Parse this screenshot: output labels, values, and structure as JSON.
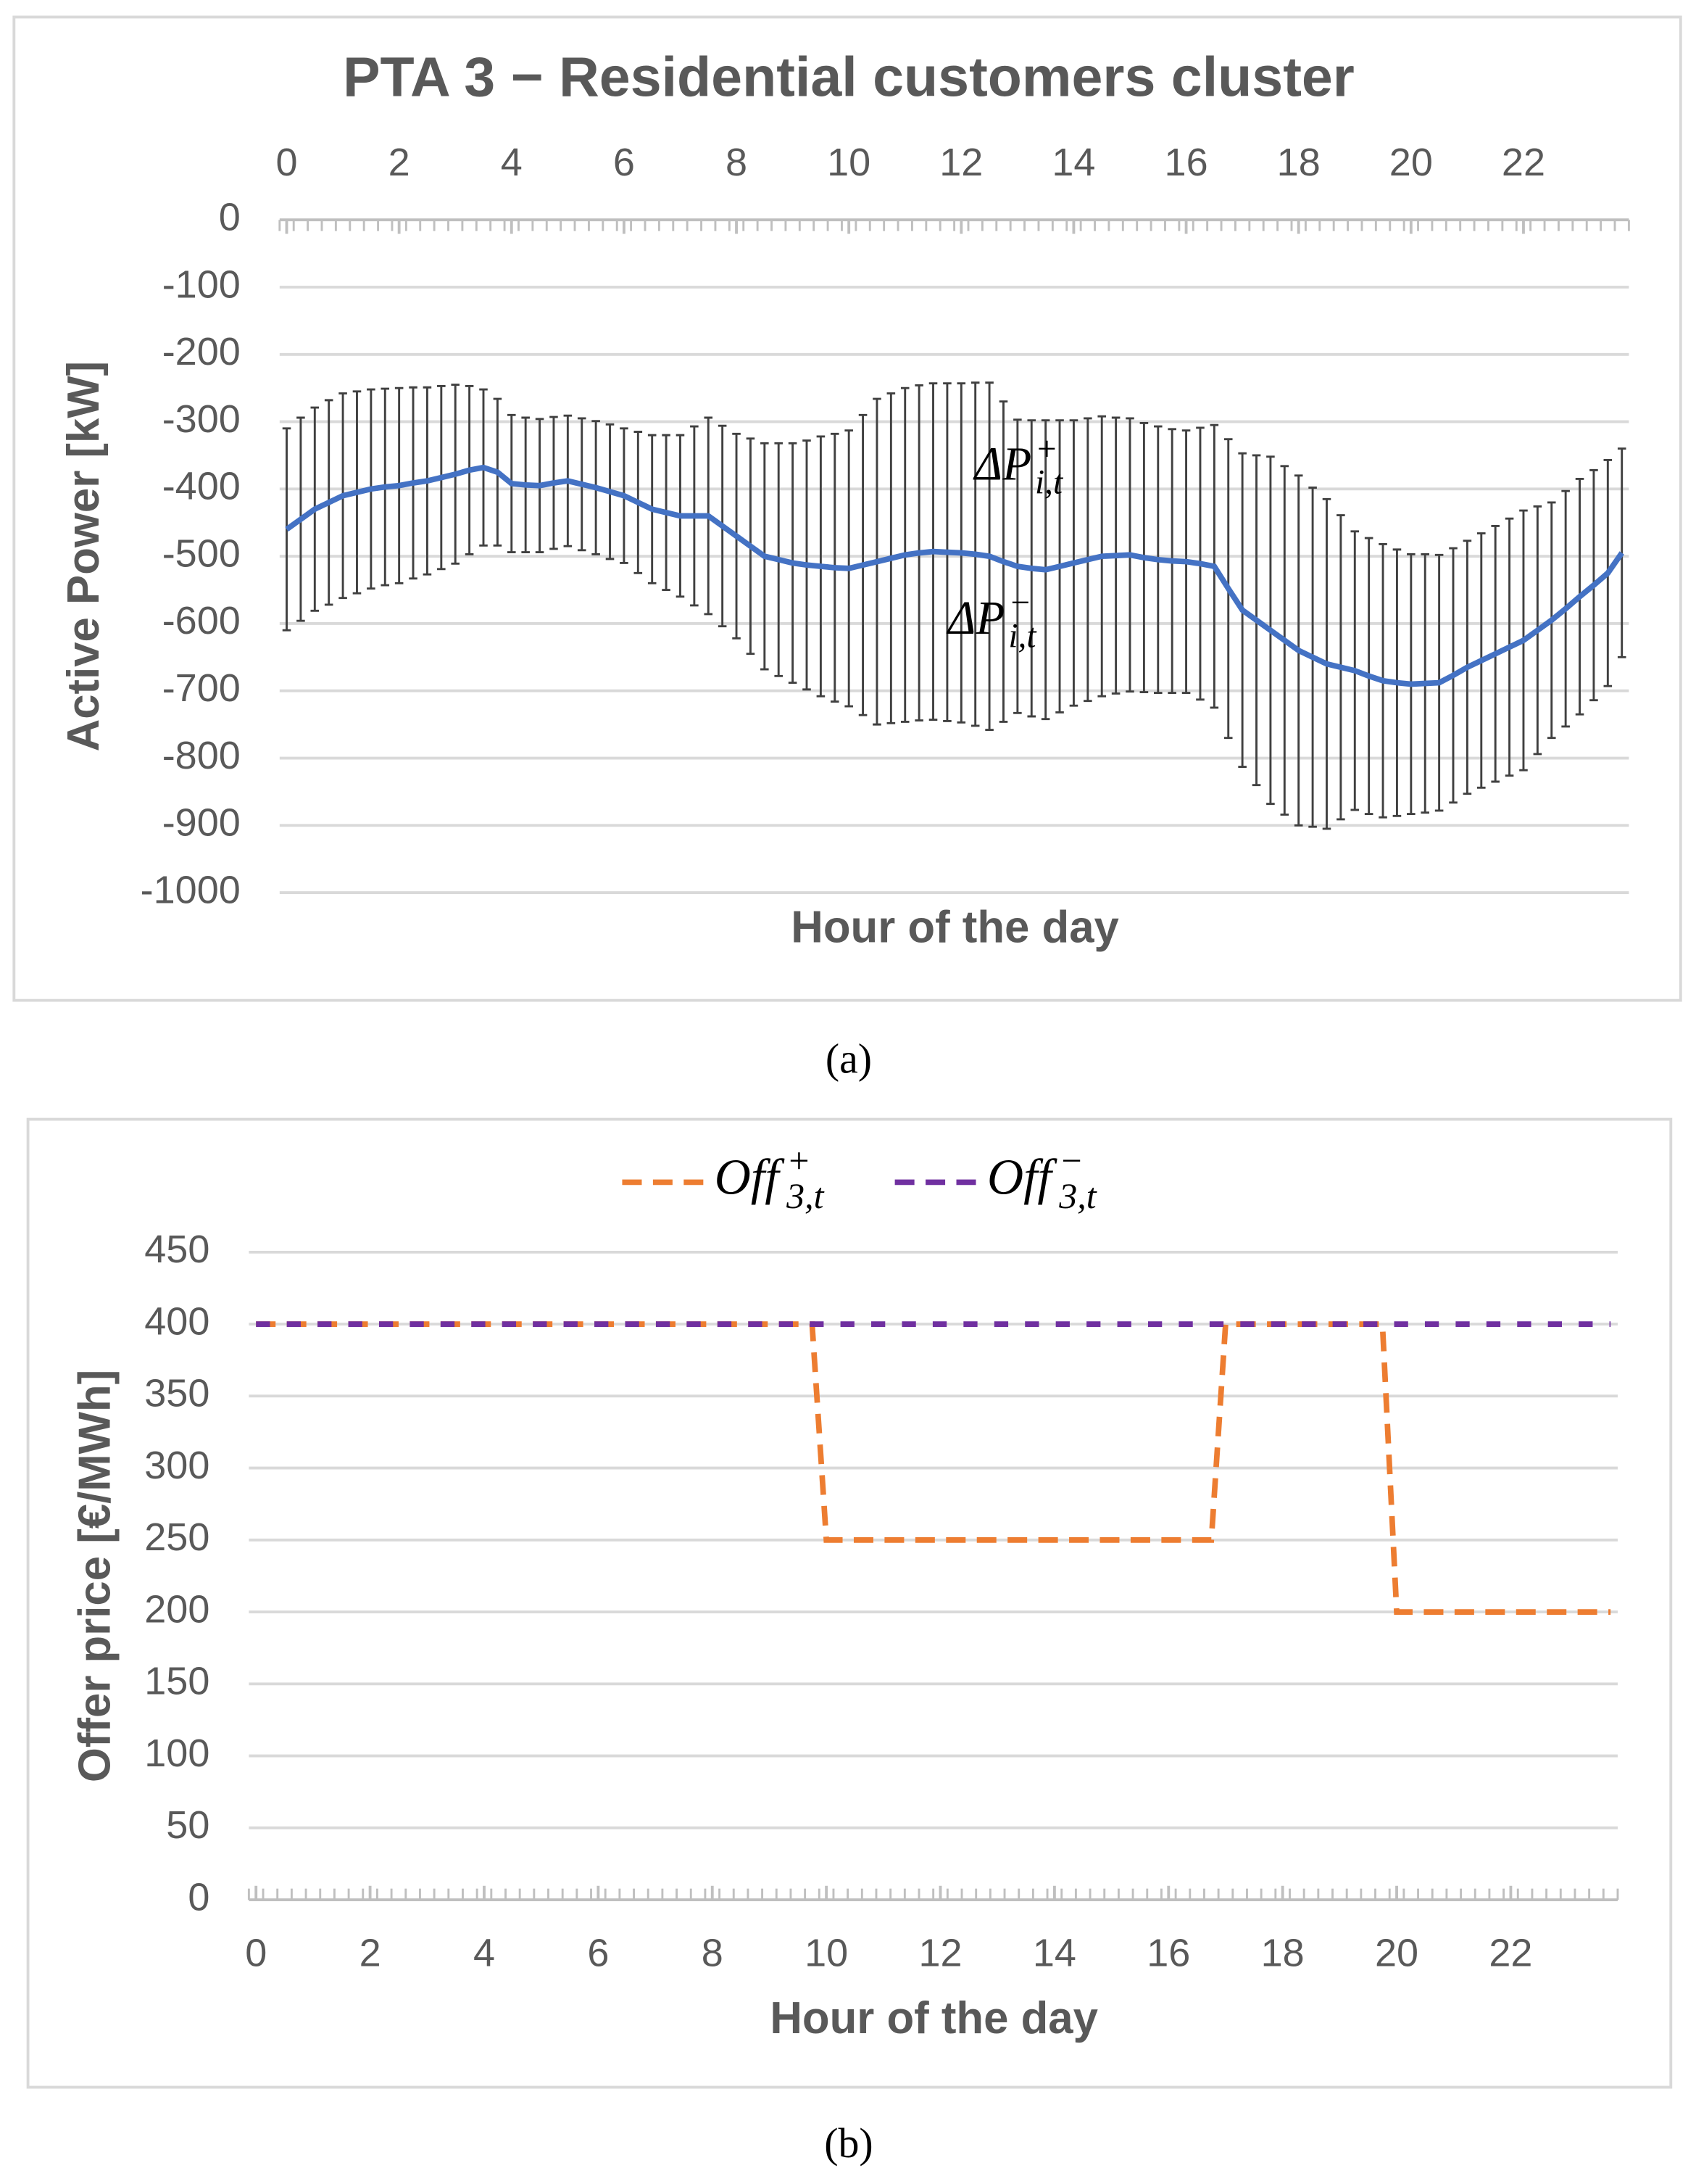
{
  "captions": [
    "(a)",
    "(b)"
  ],
  "chart_data": [
    {
      "type": "line",
      "title": "PTA 3 − Residential customers cluster",
      "xlabel": "Hour of the day",
      "ylabel": "Active Power [kW]",
      "x_axis_position": "top",
      "xlim": [
        -0.125,
        23.875
      ],
      "ylim": [
        -1000,
        0
      ],
      "xticks": [
        0,
        2,
        4,
        6,
        8,
        10,
        12,
        14,
        16,
        18,
        20,
        22
      ],
      "yticks": [
        0,
        -100,
        -200,
        -300,
        -400,
        -500,
        -600,
        -700,
        -800,
        -900,
        -1000
      ],
      "grid": true,
      "annotations": [
        {
          "text": "ΔP",
          "sub": "i,t",
          "sup": "+"
        },
        {
          "text": "ΔP",
          "sub": "i,t",
          "sup": "−"
        }
      ],
      "x": [
        0,
        0.25,
        0.5,
        0.75,
        1,
        1.25,
        1.5,
        1.75,
        2,
        2.25,
        2.5,
        2.75,
        3,
        3.25,
        3.5,
        3.75,
        4,
        4.25,
        4.5,
        4.75,
        5,
        5.25,
        5.5,
        5.75,
        6,
        6.25,
        6.5,
        6.75,
        7,
        7.25,
        7.5,
        7.75,
        8,
        8.25,
        8.5,
        8.75,
        9,
        9.25,
        9.5,
        9.75,
        10,
        10.25,
        10.5,
        10.75,
        11,
        11.25,
        11.5,
        11.75,
        12,
        12.25,
        12.5,
        12.75,
        13,
        13.25,
        13.5,
        13.75,
        14,
        14.25,
        14.5,
        14.75,
        15,
        15.25,
        15.5,
        15.75,
        16,
        16.25,
        16.5,
        16.75,
        17,
        17.25,
        17.5,
        17.75,
        18,
        18.25,
        18.5,
        18.75,
        19,
        19.25,
        19.5,
        19.75,
        20,
        20.25,
        20.5,
        20.75,
        21,
        21.25,
        21.5,
        21.75,
        22,
        22.25,
        22.5,
        22.75,
        23,
        23.25,
        23.5,
        23.75
      ],
      "series": [
        {
          "color": "#4472c4",
          "error_color": "#404040",
          "values": [
            -460,
            -445,
            -430,
            -420,
            -410,
            -405,
            -400,
            -397,
            -395,
            -391,
            -388,
            -383,
            -378,
            -372,
            -368,
            -375,
            -392,
            -394,
            -395,
            -391,
            -388,
            -393,
            -398,
            -404,
            -410,
            -420,
            -430,
            -435,
            -440,
            -440,
            -440,
            -455,
            -470,
            -485,
            -500,
            -505,
            -510,
            -513,
            -515,
            -517,
            -518,
            -513,
            -508,
            -503,
            -498,
            -495,
            -493,
            -494,
            -495,
            -497,
            -500,
            -508,
            -515,
            -518,
            -520,
            -515,
            -510,
            -505,
            -500,
            -499,
            -498,
            -502,
            -505,
            -507,
            -508,
            -511,
            -515,
            -548,
            -580,
            -595,
            -610,
            -625,
            -640,
            -650,
            -660,
            -665,
            -670,
            -678,
            -685,
            -688,
            -690,
            -689,
            -688,
            -677,
            -665,
            -655,
            -645,
            -635,
            -625,
            -610,
            -595,
            -578,
            -560,
            -543,
            -525,
            -495
          ],
          "errors": [
            150,
            151,
            151,
            152,
            152,
            150,
            148,
            146,
            145,
            142,
            139,
            136,
            133,
            125,
            116,
            109,
            102,
            100,
            99,
            98,
            97,
            98,
            99,
            100,
            100,
            105,
            110,
            115,
            120,
            133,
            146,
            149,
            152,
            160,
            168,
            173,
            178,
            185,
            193,
            199,
            205,
            223,
            242,
            245,
            248,
            249,
            250,
            251,
            252,
            255,
            258,
            238,
            218,
            220,
            222,
            217,
            212,
            210,
            208,
            205,
            203,
            200,
            198,
            196,
            195,
            202,
            210,
            222,
            233,
            245,
            258,
            259,
            260,
            252,
            245,
            226,
            207,
            205,
            203,
            198,
            193,
            192,
            190,
            189,
            188,
            189,
            190,
            191,
            193,
            184,
            175,
            175,
            175,
            171,
            168,
            155
          ]
        }
      ]
    },
    {
      "type": "line",
      "xlabel": "Hour of the day",
      "ylabel": "Offer price [€/MWh]",
      "x_axis_position": "bottom",
      "xlim": [
        -0.125,
        23.875
      ],
      "ylim": [
        0,
        450
      ],
      "xticks": [
        0,
        2,
        4,
        6,
        8,
        10,
        12,
        14,
        16,
        18,
        20,
        22
      ],
      "yticks": [
        0,
        50,
        100,
        150,
        200,
        250,
        300,
        350,
        400,
        450
      ],
      "grid": true,
      "legend": "top",
      "series": [
        {
          "name": "Off",
          "sub": "3,t",
          "sup": "+",
          "color": "#ed7d31",
          "dash": "dashed",
          "x": [
            0,
            9.75,
            10,
            16.75,
            17,
            19.75,
            20,
            23.75
          ],
          "values": [
            400,
            400,
            250,
            250,
            400,
            400,
            200,
            200
          ]
        },
        {
          "name": "Off",
          "sub": "3,t",
          "sup": "−",
          "color": "#7030a0",
          "dash": "dashed",
          "x": [
            0,
            23.75
          ],
          "values": [
            400,
            400
          ]
        }
      ]
    }
  ]
}
